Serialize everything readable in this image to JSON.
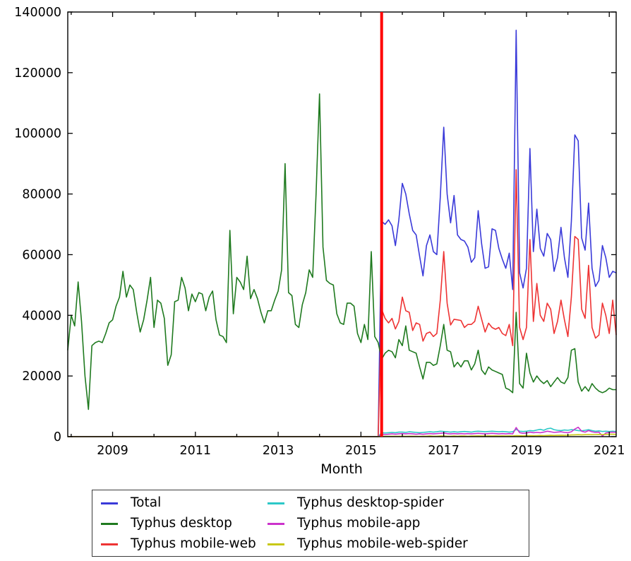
{
  "chart_data": {
    "type": "line",
    "title": "",
    "xlabel": "Month",
    "ylabel": "",
    "grid": false,
    "legend_position": "bottom",
    "axes": {
      "xmin": 2007.9167,
      "xmax": 2021.1667,
      "ymin": 0,
      "ymax": 140000,
      "yticks": [
        0,
        20000,
        40000,
        60000,
        80000,
        100000,
        120000,
        140000
      ],
      "ytick_labels": [
        "0",
        "20000",
        "40000",
        "60000",
        "80000",
        "100000",
        "120000",
        "140000"
      ],
      "xticks": [
        2009,
        2011,
        2013,
        2015,
        2017,
        2019,
        2021
      ],
      "xtick_labels": [
        "2009",
        "2011",
        "2013",
        "2015",
        "2017",
        "2019",
        "2021"
      ],
      "xminorticks": [
        2008,
        2010,
        2012,
        2014,
        2016,
        2018,
        2020
      ]
    },
    "x_start": 2007.9167,
    "x_step_years": 0.08333333,
    "event_line": {
      "x": 2015.5,
      "color": "#ff0000",
      "width": 4
    },
    "series": [
      {
        "id": "total",
        "label": "Total",
        "color": "#3a3ad9",
        "values": [
          0,
          0,
          0,
          0,
          0,
          0,
          0,
          0,
          0,
          0,
          0,
          0,
          0,
          0,
          0,
          0,
          0,
          0,
          0,
          0,
          0,
          0,
          0,
          0,
          0,
          0,
          0,
          0,
          0,
          0,
          0,
          0,
          0,
          0,
          0,
          0,
          0,
          0,
          0,
          0,
          0,
          0,
          0,
          0,
          0,
          0,
          0,
          0,
          0,
          0,
          0,
          0,
          0,
          0,
          0,
          0,
          0,
          0,
          0,
          0,
          0,
          0,
          0,
          0,
          0,
          0,
          0,
          0,
          0,
          0,
          0,
          0,
          0,
          0,
          0,
          0,
          0,
          0,
          0,
          0,
          0,
          0,
          0,
          0,
          0,
          0,
          0,
          0,
          0,
          0,
          0,
          71000,
          70000,
          71500,
          69500,
          63000,
          71500,
          83500,
          80000,
          73500,
          68000,
          66500,
          59500,
          53000,
          63000,
          66500,
          61000,
          60000,
          79000,
          102000,
          80000,
          70500,
          79500,
          66500,
          65000,
          64500,
          62500,
          57500,
          59000,
          74500,
          63500,
          55500,
          56000,
          68500,
          68000,
          62000,
          58500,
          55500,
          60500,
          48500,
          134000,
          54000,
          49000,
          55500,
          95000,
          61000,
          75000,
          62000,
          59500,
          67000,
          65000,
          54500,
          59000,
          69000,
          59000,
          52500,
          71000,
          99500,
          97500,
          65500,
          61500,
          77000,
          55500,
          49500,
          51500,
          63000,
          59000,
          52500,
          54500,
          54000
        ]
      },
      {
        "id": "desktop",
        "label": "Typhus desktop",
        "color": "#1f7a1f",
        "values": [
          28500,
          40000,
          36500,
          51000,
          38000,
          20000,
          9000,
          30000,
          31000,
          31500,
          31000,
          34000,
          37500,
          38500,
          43000,
          46000,
          54500,
          46000,
          50000,
          48500,
          41000,
          34500,
          38500,
          45000,
          52500,
          36000,
          45000,
          44000,
          39000,
          23500,
          27000,
          44500,
          45000,
          52500,
          49000,
          41500,
          47000,
          44500,
          47500,
          47000,
          41500,
          46000,
          48000,
          38500,
          33500,
          33000,
          31000,
          68000,
          40500,
          52500,
          51000,
          48500,
          59500,
          45500,
          48500,
          45500,
          41000,
          37500,
          41500,
          41500,
          45000,
          48000,
          55000,
          90000,
          47500,
          46500,
          37000,
          36000,
          43500,
          47500,
          55000,
          52500,
          80000,
          113000,
          62500,
          51500,
          50500,
          50000,
          40500,
          37500,
          37000,
          44000,
          44000,
          43000,
          34000,
          31000,
          37000,
          32000,
          61000,
          33000,
          31000,
          25500,
          27500,
          28500,
          28000,
          26000,
          32000,
          30000,
          36500,
          28500,
          28000,
          27500,
          23000,
          19000,
          24500,
          24500,
          23500,
          24000,
          30000,
          37000,
          28500,
          28000,
          23000,
          24500,
          23000,
          25000,
          25000,
          22000,
          24000,
          28500,
          22000,
          20500,
          23000,
          22000,
          21500,
          21000,
          20500,
          16000,
          15500,
          14500,
          41000,
          17500,
          16000,
          27500,
          21000,
          18000,
          20000,
          18500,
          17500,
          18500,
          16500,
          18000,
          19500,
          18000,
          17500,
          19500,
          28500,
          29000,
          18000,
          15000,
          16500,
          15000,
          17500,
          16000,
          15000,
          14500,
          15000,
          16000,
          15500,
          15500
        ]
      },
      {
        "id": "mobile-web",
        "label": "Typhus mobile-web",
        "color": "#ee3333",
        "values": [
          0,
          0,
          0,
          0,
          0,
          0,
          0,
          0,
          0,
          0,
          0,
          0,
          0,
          0,
          0,
          0,
          0,
          0,
          0,
          0,
          0,
          0,
          0,
          0,
          0,
          0,
          0,
          0,
          0,
          0,
          0,
          0,
          0,
          0,
          0,
          0,
          0,
          0,
          0,
          0,
          0,
          0,
          0,
          0,
          0,
          0,
          0,
          0,
          0,
          0,
          0,
          0,
          0,
          0,
          0,
          0,
          0,
          0,
          0,
          0,
          0,
          0,
          0,
          0,
          0,
          0,
          0,
          0,
          0,
          0,
          0,
          0,
          0,
          0,
          0,
          0,
          0,
          0,
          0,
          0,
          0,
          0,
          0,
          0,
          0,
          0,
          0,
          0,
          0,
          0,
          0,
          42000,
          39000,
          37500,
          39000,
          35500,
          38000,
          46000,
          41500,
          41000,
          35000,
          37500,
          37000,
          31500,
          34000,
          34500,
          33000,
          34000,
          45000,
          61000,
          44000,
          36800,
          38700,
          38500,
          38300,
          36000,
          37000,
          37000,
          38000,
          43000,
          38700,
          34500,
          37400,
          36000,
          35400,
          36000,
          34000,
          33300,
          37000,
          30000,
          88000,
          36000,
          32000,
          36000,
          65000,
          38000,
          50500,
          40000,
          38000,
          44000,
          42000,
          34000,
          38000,
          45000,
          38500,
          33000,
          46000,
          66000,
          65000,
          42000,
          39000,
          56500,
          36000,
          32500,
          33500,
          44000,
          40000,
          34000,
          45000,
          33500
        ]
      },
      {
        "id": "desktop-spider",
        "label": "Typhus desktop-spider",
        "color": "#2cc8c8",
        "values": [
          0,
          0,
          0,
          0,
          0,
          0,
          0,
          0,
          0,
          0,
          0,
          0,
          0,
          0,
          0,
          0,
          0,
          0,
          0,
          0,
          0,
          0,
          0,
          0,
          0,
          0,
          0,
          0,
          0,
          0,
          0,
          0,
          0,
          0,
          0,
          0,
          0,
          0,
          0,
          0,
          0,
          0,
          0,
          0,
          0,
          0,
          0,
          0,
          0,
          0,
          0,
          0,
          0,
          0,
          0,
          0,
          0,
          0,
          0,
          0,
          0,
          0,
          0,
          0,
          0,
          0,
          0,
          0,
          0,
          0,
          0,
          0,
          0,
          0,
          0,
          0,
          0,
          0,
          0,
          0,
          0,
          0,
          0,
          0,
          0,
          0,
          0,
          0,
          0,
          0,
          0,
          1300,
          1200,
          1300,
          1400,
          1300,
          1500,
          1500,
          1400,
          1600,
          1500,
          1400,
          1300,
          1400,
          1500,
          1600,
          1500,
          1600,
          1800,
          1700,
          1600,
          1500,
          1600,
          1500,
          1600,
          1700,
          1600,
          1500,
          1700,
          1800,
          1700,
          1600,
          1700,
          1800,
          1700,
          1600,
          1700,
          1600,
          1500,
          1600,
          2400,
          1800,
          1700,
          1800,
          2000,
          1900,
          2200,
          2400,
          2100,
          2600,
          2800,
          2300,
          2100,
          2000,
          2200,
          2100,
          2300,
          2200,
          2000,
          1900,
          2100,
          2300,
          2000,
          1800,
          1900,
          1700,
          1800,
          1700,
          1800,
          1700
        ]
      },
      {
        "id": "mobile-app",
        "label": "Typhus mobile-app",
        "color": "#cc33cc",
        "values": [
          0,
          0,
          0,
          0,
          0,
          0,
          0,
          0,
          0,
          0,
          0,
          0,
          0,
          0,
          0,
          0,
          0,
          0,
          0,
          0,
          0,
          0,
          0,
          0,
          0,
          0,
          0,
          0,
          0,
          0,
          0,
          0,
          0,
          0,
          0,
          0,
          0,
          0,
          0,
          0,
          0,
          0,
          0,
          0,
          0,
          0,
          0,
          0,
          0,
          0,
          0,
          0,
          0,
          0,
          0,
          0,
          0,
          0,
          0,
          0,
          0,
          0,
          0,
          0,
          0,
          0,
          0,
          0,
          0,
          0,
          0,
          0,
          0,
          0,
          0,
          0,
          0,
          0,
          0,
          0,
          0,
          0,
          0,
          0,
          0,
          0,
          0,
          0,
          0,
          0,
          0,
          800,
          700,
          800,
          900,
          800,
          900,
          1000,
          900,
          1000,
          900,
          800,
          900,
          800,
          900,
          1000,
          900,
          1000,
          1100,
          1200,
          1000,
          900,
          1000,
          900,
          1000,
          900,
          1000,
          900,
          1000,
          1100,
          1000,
          900,
          1000,
          1100,
          1000,
          900,
          1000,
          900,
          1000,
          900,
          3000,
          1300,
          1100,
          1200,
          1500,
          1300,
          1400,
          1300,
          1500,
          1800,
          1600,
          1400,
          1500,
          1600,
          1400,
          1300,
          1600,
          2500,
          3100,
          1800,
          1500,
          2000,
          1600,
          1400,
          1500,
          200,
          1200,
          1400,
          1500,
          1400
        ]
      },
      {
        "id": "mobile-web-spider",
        "label": "Typhus mobile-web-spider",
        "color": "#c8c814",
        "values": [
          0,
          0,
          0,
          0,
          0,
          0,
          0,
          0,
          0,
          0,
          0,
          0,
          0,
          0,
          0,
          0,
          0,
          0,
          0,
          0,
          0,
          0,
          0,
          0,
          0,
          0,
          0,
          0,
          0,
          0,
          0,
          0,
          0,
          0,
          0,
          0,
          0,
          0,
          0,
          0,
          0,
          0,
          0,
          0,
          0,
          0,
          0,
          0,
          0,
          0,
          0,
          0,
          0,
          0,
          0,
          0,
          0,
          0,
          0,
          0,
          0,
          0,
          0,
          0,
          0,
          0,
          0,
          0,
          0,
          0,
          0,
          0,
          0,
          0,
          0,
          0,
          0,
          0,
          0,
          0,
          0,
          0,
          0,
          0,
          0,
          0,
          0,
          0,
          0,
          0,
          0,
          100,
          100,
          100,
          150,
          100,
          150,
          150,
          100,
          150,
          150,
          100,
          100,
          150,
          150,
          200,
          150,
          150,
          200,
          200,
          150,
          150,
          200,
          150,
          200,
          200,
          150,
          200,
          200,
          250,
          200,
          200,
          250,
          200,
          250,
          200,
          250,
          200,
          250,
          200,
          350,
          300,
          250,
          300,
          350,
          300,
          350,
          400,
          350,
          400,
          450,
          400,
          450,
          500,
          450,
          500,
          550,
          600,
          650,
          600,
          650,
          700,
          650,
          700,
          750,
          700,
          750,
          800,
          800,
          750
        ]
      }
    ]
  },
  "legend": {
    "columns": 2
  }
}
